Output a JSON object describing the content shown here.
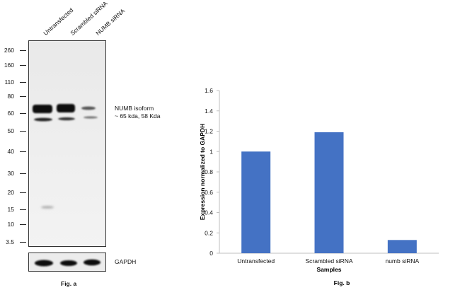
{
  "blot": {
    "lanes": [
      "Untransfected",
      "Scrambled siRNA",
      "NUMB siRNA"
    ],
    "markers": [
      "260",
      "160",
      "110",
      "80",
      "60",
      "50",
      "40",
      "30",
      "20",
      "15",
      "10",
      "3.5"
    ],
    "annotation_line1": "NUMB isoform",
    "annotation_line2": "~ 65 kda, 58 Kda",
    "loading_control": "GAPDH",
    "fig_label": "Fig. a"
  },
  "chart_data": {
    "type": "bar",
    "title": "",
    "categories": [
      "Untransfected",
      "Scrambled siRNA",
      "numb siRNA"
    ],
    "values": [
      1.0,
      1.19,
      0.13
    ],
    "xlabel": "Samples",
    "ylabel": "Expression normalized to GAPDH",
    "ylim": [
      0,
      1.6
    ],
    "yticks": [
      0,
      0.2,
      0.4,
      0.6,
      0.8,
      1,
      1.2,
      1.4,
      1.6
    ],
    "bar_color": "#4472C4",
    "grid": false,
    "fig_label": "Fig. b"
  }
}
